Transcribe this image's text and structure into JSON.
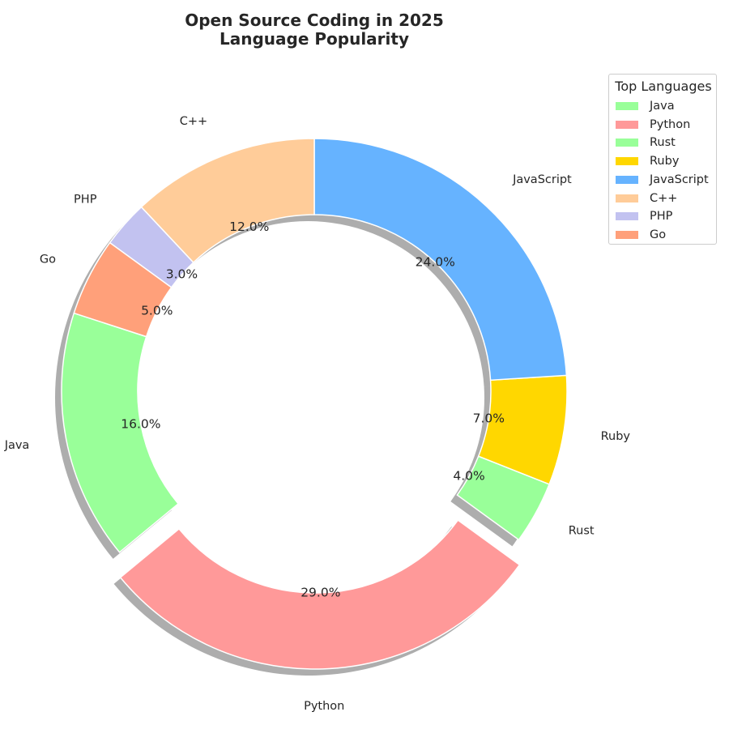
{
  "chart_data": {
    "type": "pie",
    "variant": "donut",
    "title": "Open Source Coding in 2025",
    "subtitle": "Language Popularity",
    "start_angle_deg": 162,
    "direction": "counterclockwise",
    "slices": [
      {
        "label": "Java",
        "value": 16.0,
        "pct_label": "16.0%",
        "color": "#99ff99",
        "exploded": false
      },
      {
        "label": "Python",
        "value": 29.0,
        "pct_label": "29.0%",
        "color": "#ff9999",
        "exploded": true
      },
      {
        "label": "Rust",
        "value": 4.0,
        "pct_label": "4.0%",
        "color": "#99ff99",
        "exploded": false
      },
      {
        "label": "Ruby",
        "value": 7.0,
        "pct_label": "7.0%",
        "color": "#ffd700",
        "exploded": false
      },
      {
        "label": "JavaScript",
        "value": 24.0,
        "pct_label": "24.0%",
        "color": "#66b3ff",
        "exploded": false
      },
      {
        "label": "C++",
        "value": 12.0,
        "pct_label": "12.0%",
        "color": "#ffcc99",
        "exploded": false
      },
      {
        "label": "PHP",
        "value": 3.0,
        "pct_label": "3.0%",
        "color": "#c2c2f0",
        "exploded": false
      },
      {
        "label": "Go",
        "value": 5.0,
        "pct_label": "5.0%",
        "color": "#ffa07a",
        "exploded": false
      }
    ],
    "legend": {
      "title": "Top Languages",
      "position": "top-right"
    },
    "shadow": true
  }
}
